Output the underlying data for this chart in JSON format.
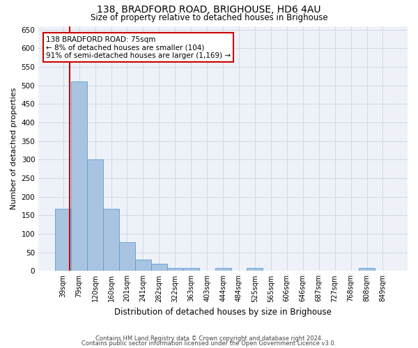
{
  "title": "138, BRADFORD ROAD, BRIGHOUSE, HD6 4AU",
  "subtitle": "Size of property relative to detached houses in Brighouse",
  "xlabel": "Distribution of detached houses by size in Brighouse",
  "ylabel": "Number of detached properties",
  "bin_labels": [
    "39sqm",
    "79sqm",
    "120sqm",
    "160sqm",
    "201sqm",
    "241sqm",
    "282sqm",
    "322sqm",
    "363sqm",
    "403sqm",
    "444sqm",
    "484sqm",
    "525sqm",
    "565sqm",
    "606sqm",
    "646sqm",
    "687sqm",
    "727sqm",
    "768sqm",
    "808sqm",
    "849sqm"
  ],
  "bar_values": [
    168,
    510,
    301,
    168,
    78,
    30,
    20,
    8,
    8,
    0,
    8,
    0,
    8,
    0,
    0,
    0,
    0,
    0,
    0,
    8,
    0
  ],
  "bar_color": "#a8c4e0",
  "bar_edge_color": "#5b9bd5",
  "red_line_color": "#cc0000",
  "annotation_text": "138 BRADFORD ROAD: 75sqm\n← 8% of detached houses are smaller (104)\n91% of semi-detached houses are larger (1,169) →",
  "annotation_box_color": "#ffffff",
  "annotation_box_edge": "#cc0000",
  "ylim": [
    0,
    660
  ],
  "yticks": [
    0,
    50,
    100,
    150,
    200,
    250,
    300,
    350,
    400,
    450,
    500,
    550,
    600,
    650
  ],
  "grid_color": "#d0d8e8",
  "bg_color": "#eef2f8",
  "footer_line1": "Contains HM Land Registry data © Crown copyright and database right 2024.",
  "footer_line2": "Contains public sector information licensed under the Open Government Licence v3.0."
}
